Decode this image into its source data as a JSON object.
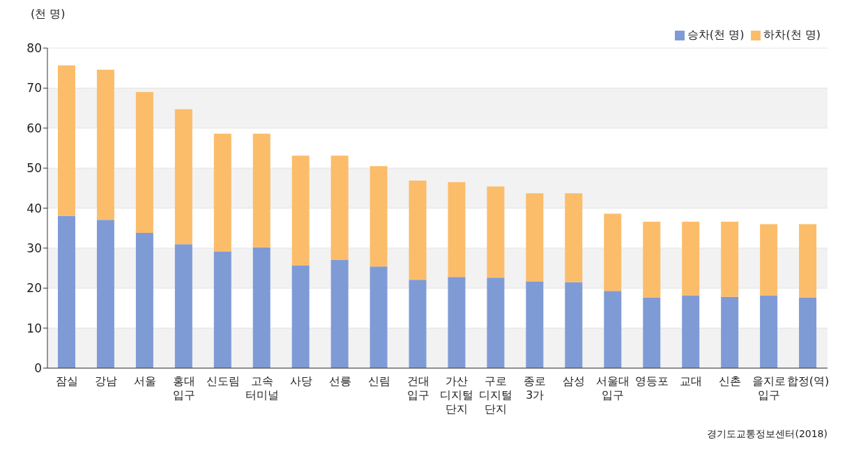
{
  "chart_data": {
    "type": "bar",
    "stacked": true,
    "ylabel": "(천 명)",
    "categories": [
      "잠실",
      "강남",
      "서울",
      "홍대\n입구",
      "신도림",
      "고속\n터미널",
      "사당",
      "선릉",
      "신림",
      "건대\n입구",
      "가산\n디지털\n단지",
      "구로\n디지털\n단지",
      "종로\n3가",
      "삼성",
      "서울대\n입구",
      "영등포",
      "교대",
      "신촌",
      "을지로\n입구",
      "합정(역)"
    ],
    "series": [
      {
        "name": "승차(천 명)",
        "color": "#7f9bd6",
        "values": [
          38.1,
          37.1,
          33.8,
          31.0,
          29.2,
          30.2,
          25.6,
          27.1,
          25.4,
          22.1,
          22.8,
          22.6,
          21.6,
          21.5,
          19.3,
          17.7,
          18.2,
          17.8,
          18.2,
          17.7
        ]
      },
      {
        "name": "하차(천 명)",
        "color": "#fbbd6a",
        "values": [
          37.6,
          37.5,
          35.2,
          33.7,
          29.4,
          28.4,
          27.5,
          26.0,
          25.1,
          24.8,
          23.7,
          22.8,
          22.1,
          22.2,
          19.3,
          18.9,
          18.4,
          18.8,
          17.8,
          18.3
        ]
      }
    ],
    "ylim": [
      0,
      80
    ],
    "yticks": [
      0,
      10,
      20,
      30,
      40,
      50,
      60,
      70,
      80
    ],
    "grid": "y",
    "legend": "top right",
    "annotations": [
      "경기도교통정보센터(2018)"
    ]
  }
}
